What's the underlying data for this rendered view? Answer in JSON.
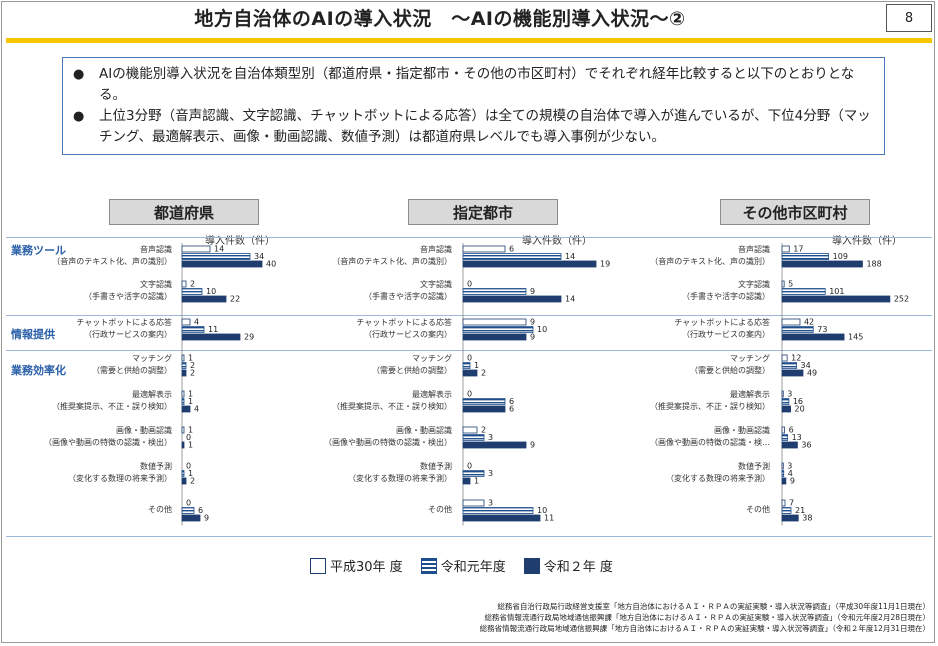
{
  "header": {
    "title": "地方自治体のAIの導入状況　～AIの機能別導入状況～②",
    "page_number": "8"
  },
  "summary": {
    "bullets": [
      "AIの機能別導入状況を自治体類型別（都道府県・指定都市・その他の市区町村）でそれぞれ経年比較すると以下のとおりとなる。",
      "上位3分野（音声認識、文字認識、チャットボットによる応答）は全ての規模の自治体で導入が進んでいるが、下位4分野（マッチング、最適解表示、画像・動画認識、数値予測）は都道府県レベルでも導入事例が少ない。"
    ],
    "bullet_glyph": "●"
  },
  "groups": [
    "業務ツール",
    "情報提供",
    "業務効率化"
  ],
  "unit_label": "導入件数（件）",
  "colors": {
    "navy": "#1f3d6e",
    "stripe": "#1f4e8c",
    "accent_yellow": "#f7c600",
    "group_blue": "#2a5fa8"
  },
  "legend": [
    {
      "label": "平成30年 度",
      "style": "hollow"
    },
    {
      "label": "令和元年度",
      "style": "striped"
    },
    {
      "label": "令和２年 度",
      "style": "solid"
    }
  ],
  "sources": [
    "総務省自治行政局行政経営支援室「地方自治体におけるＡＩ・ＲＰＡの実証実験・導入状況等調査」（平成30年度11月1日現在）",
    "総務省情報流通行政局地域通信振興課「地方自治体におけるＡＩ・ＲＰＡの実証実験・導入状況等調査」（令和元年度2月28日現在）",
    "総務省情報流通行政局地域通信振興課「地方自治体におけるＡＩ・ＲＰＡの実証実験・導入状況等調査」（令和２年度12月31日現在）"
  ],
  "chart_data": [
    {
      "type": "bar",
      "orientation": "horizontal",
      "title": "都道府県",
      "xlabel": "導入件数（件）",
      "categories": [
        [
          "音声認識",
          "（音声のテキスト化、声の識別）"
        ],
        [
          "文字認識",
          "（手書きや活字の認識）"
        ],
        [
          "チャットボットによる応答",
          "（行政サービスの案内）"
        ],
        [
          "マッチング",
          "（需要と供給の調整）"
        ],
        [
          "最適解表示",
          "（推奨案提示、不正・誤り検知）"
        ],
        [
          "画像・動画認識",
          "（画像や動画の特徴の認識・検出）"
        ],
        [
          "数値予測",
          "（変化する数理の将来予測）"
        ],
        [
          "その他",
          ""
        ]
      ],
      "series": [
        {
          "name": "平成30年 度",
          "values": [
            14,
            2,
            4,
            1,
            1,
            1,
            0,
            0
          ]
        },
        {
          "name": "令和元年度",
          "values": [
            34,
            10,
            11,
            2,
            1,
            0,
            1,
            6
          ]
        },
        {
          "name": "令和２年 度",
          "values": [
            40,
            22,
            29,
            2,
            4,
            1,
            2,
            9
          ]
        }
      ]
    },
    {
      "type": "bar",
      "orientation": "horizontal",
      "title": "指定都市",
      "xlabel": "導入件数（件）",
      "categories": [
        [
          "音声認識",
          "（音声のテキスト化、声の識別）"
        ],
        [
          "文字認識",
          "（手書きや活字の認識）"
        ],
        [
          "チャットボットによる応答",
          "（行政サービスの案内）"
        ],
        [
          "マッチング",
          "（需要と供給の調整）"
        ],
        [
          "最適解表示",
          "（推奨案提示、不正・誤り検知）"
        ],
        [
          "画像・動画認識",
          "（画像や動画の特徴の認識・検出）"
        ],
        [
          "数値予測",
          "（変化する数理の将来予測）"
        ],
        [
          "その他",
          ""
        ]
      ],
      "series": [
        {
          "name": "平成30年 度",
          "values": [
            6,
            0,
            9,
            0,
            0,
            2,
            0,
            3
          ]
        },
        {
          "name": "令和元年度",
          "values": [
            14,
            9,
            10,
            1,
            6,
            3,
            3,
            10
          ]
        },
        {
          "name": "令和２年 度",
          "values": [
            19,
            14,
            9,
            2,
            6,
            9,
            1,
            11
          ]
        }
      ]
    },
    {
      "type": "bar",
      "orientation": "horizontal",
      "title": "その他市区町村",
      "xlabel": "導入件数（件）",
      "categories": [
        [
          "音声認識",
          "（音声のテキスト化、声の識別）"
        ],
        [
          "文字認識",
          "（手書きや活字の認識）"
        ],
        [
          "チャットボットによる応答",
          "（行政サービスの案内）"
        ],
        [
          "マッチング",
          "（需要と供給の調整）"
        ],
        [
          "最適解表示",
          "（推奨案提示、不正・誤り検知）"
        ],
        [
          "画像・動画認識",
          "（画像や動画の特徴の認識・検…"
        ],
        [
          "数値予測",
          "（変化する数理の将来予測）"
        ],
        [
          "その他",
          ""
        ]
      ],
      "series": [
        {
          "name": "平成30年 度",
          "values": [
            17,
            5,
            42,
            12,
            3,
            6,
            3,
            7
          ]
        },
        {
          "name": "令和元年度",
          "values": [
            109,
            101,
            73,
            34,
            16,
            13,
            4,
            21
          ]
        },
        {
          "name": "令和２年 度",
          "values": [
            188,
            252,
            145,
            49,
            20,
            36,
            9,
            38
          ]
        }
      ]
    }
  ]
}
